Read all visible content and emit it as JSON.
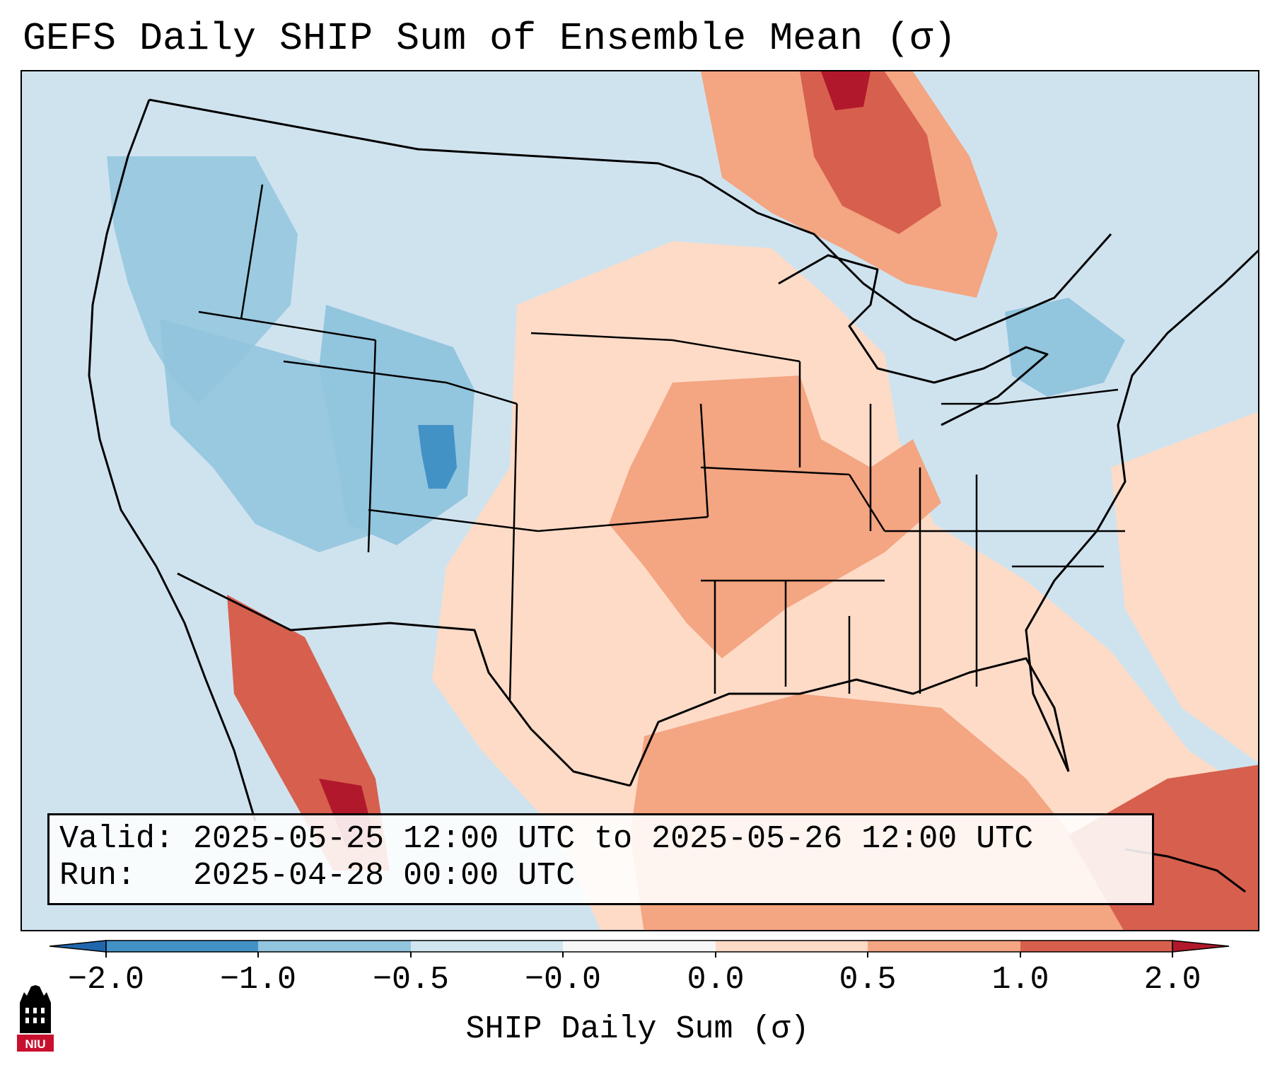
{
  "figure": {
    "title": "GEFS Daily SHIP Sum of Ensemble Mean (σ)",
    "valid_label": "Valid:",
    "valid_value": "2025-05-25 12:00 UTC to 2025-05-26 12:00 UTC",
    "run_label": "Run:",
    "run_value": "2025-04-28 00:00 UTC"
  },
  "colorbar": {
    "label": "SHIP Daily Sum (σ)",
    "ticks": [
      "−2.0",
      "−1.0",
      "−0.5",
      "−0.0",
      "0.0",
      "0.5",
      "1.0",
      "2.0"
    ],
    "colors": {
      "below_-1.0": "#4292c6",
      "-1.0_to_-0.5": "#92c5de",
      "-0.5_to_-0.0": "#d1e5f0",
      "-0.0_to_0.0": "#f7f7f7",
      "0.0_to_0.5": "#fddbc7",
      "0.5_to_1.0": "#f4a582",
      "1.0_to_2.0": "#d6604d",
      "above_2.0": "#b2182b"
    },
    "extend": "both"
  },
  "map": {
    "projection": "lambert-conformal",
    "region": "CONUS",
    "boundaries": [
      "coastlines",
      "country-borders",
      "state-borders"
    ]
  },
  "logo": {
    "text": "NIU",
    "colors": {
      "tower": "#000000",
      "banner": "#c8102e"
    }
  }
}
